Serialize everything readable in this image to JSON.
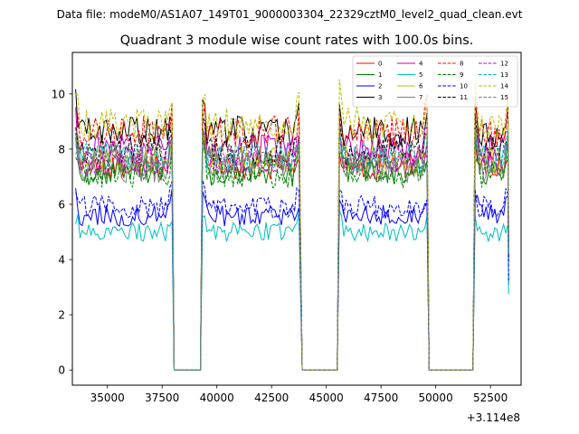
{
  "suptitle": "Data file: modeM0/AS1A07_149T01_9000003304_22329cztM0_level2_quad_clean.evt",
  "chart_data": {
    "type": "line",
    "title": "Quadrant 3 module wise count rates with 100.0s bins.",
    "xlabel": "",
    "ylabel": "",
    "x_offset_label": "+3.114e8",
    "xlim": [
      33400,
      53900
    ],
    "ylim": [
      -0.55,
      11.5
    ],
    "xticks": [
      35000,
      37500,
      40000,
      42500,
      45000,
      47500,
      50000,
      52500
    ],
    "xtick_labels": [
      "35000",
      "37500",
      "40000",
      "42500",
      "45000",
      "47500",
      "50000",
      "52500"
    ],
    "yticks": [
      0,
      2,
      4,
      6,
      8,
      10
    ],
    "ytick_labels": [
      "0",
      "2",
      "4",
      "6",
      "8",
      "10"
    ],
    "legend_location": "top-right",
    "gti_segments": [
      [
        33550,
        37950
      ],
      [
        39350,
        43800
      ],
      [
        45600,
        49600
      ],
      [
        51800,
        53300
      ]
    ],
    "bin_seconds": 100,
    "series": [
      {
        "name": "0",
        "color": "#ff0000",
        "dashed": false,
        "level": 7.4
      },
      {
        "name": "1",
        "color": "#008000",
        "dashed": false,
        "level": 7.2
      },
      {
        "name": "2",
        "color": "#0000ff",
        "dashed": false,
        "level": 5.6
      },
      {
        "name": "3",
        "color": "#000000",
        "dashed": false,
        "level": 8.6
      },
      {
        "name": "4",
        "color": "#bf00bf",
        "dashed": false,
        "level": 8.0
      },
      {
        "name": "5",
        "color": "#00bfbf",
        "dashed": false,
        "level": 5.0
      },
      {
        "name": "6",
        "color": "#bfbf00",
        "dashed": false,
        "level": 7.6
      },
      {
        "name": "7",
        "color": "#808080",
        "dashed": false,
        "level": 7.3
      },
      {
        "name": "8",
        "color": "#ff0000",
        "dashed": true,
        "level": 8.6
      },
      {
        "name": "9",
        "color": "#008000",
        "dashed": true,
        "level": 7.1
      },
      {
        "name": "10",
        "color": "#0000ff",
        "dashed": true,
        "level": 5.9
      },
      {
        "name": "11",
        "color": "#000000",
        "dashed": true,
        "level": 8.0
      },
      {
        "name": "12",
        "color": "#bf00bf",
        "dashed": true,
        "level": 7.6
      },
      {
        "name": "13",
        "color": "#00bfbf",
        "dashed": true,
        "level": 7.7
      },
      {
        "name": "14",
        "color": "#bfbf00",
        "dashed": true,
        "level": 8.9
      },
      {
        "name": "15",
        "color": "#808080",
        "dashed": true,
        "level": 7.7
      }
    ]
  }
}
